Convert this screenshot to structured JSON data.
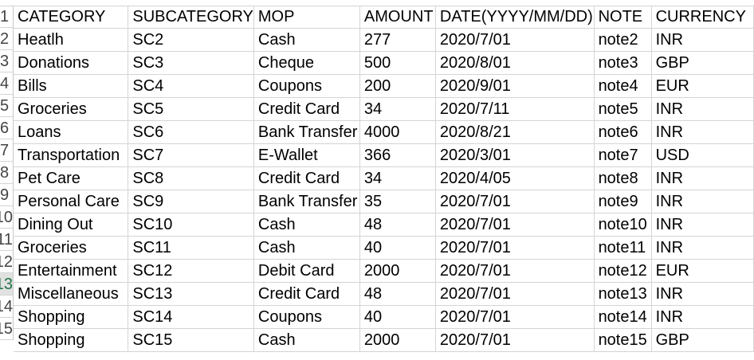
{
  "headers": [
    "CATEGORY",
    "SUBCATEGORY",
    "MOP",
    "AMOUNT",
    "DATE(YYYY/MM/DD)",
    "NOTE",
    "CURRENCY"
  ],
  "row_numbers": [
    "1",
    "2",
    "3",
    "4",
    "5",
    "6",
    "7",
    "8",
    "9",
    "10",
    "11",
    "12",
    "13",
    "14",
    "15"
  ],
  "rows": [
    [
      "Heatlh",
      "SC2",
      "Cash",
      "277",
      "2020/7/01",
      "note2",
      "INR"
    ],
    [
      "Donations",
      "SC3",
      "Cheque",
      "500",
      "2020/8/01",
      "note3",
      "GBP"
    ],
    [
      "Bills",
      "SC4",
      "Coupons",
      "200",
      "2020/9/01",
      "note4",
      "EUR"
    ],
    [
      "Groceries",
      "SC5",
      "Credit Card",
      "34",
      "2020/7/11",
      "note5",
      "INR"
    ],
    [
      "Loans",
      "SC6",
      "Bank Transfer",
      "4000",
      "2020/8/21",
      "note6",
      "INR"
    ],
    [
      "Transportation",
      "SC7",
      "E-Wallet",
      "366",
      "2020/3/01",
      "note7",
      "USD"
    ],
    [
      "Pet Care",
      "SC8",
      "Credit Card",
      "34",
      "2020/4/05",
      "note8",
      "INR"
    ],
    [
      "Personal Care",
      "SC9",
      "Bank Transfer",
      "35",
      "2020/7/01",
      "note9",
      "INR"
    ],
    [
      "Dining Out",
      "SC10",
      "Cash",
      "48",
      "2020/7/01",
      "note10",
      "INR"
    ],
    [
      "Groceries",
      "SC11",
      "Cash",
      "40",
      "2020/7/01",
      "note11",
      "INR"
    ],
    [
      "Entertainment",
      "SC12",
      "Debit Card",
      "2000",
      "2020/7/01",
      "note12",
      "EUR"
    ],
    [
      "Miscellaneous",
      "SC13",
      "Credit Card",
      "48",
      "2020/7/01",
      "note13",
      "INR"
    ],
    [
      "Shopping",
      "SC14",
      "Coupons",
      "40",
      "2020/7/01",
      "note14",
      "INR"
    ],
    [
      "Shopping",
      "SC15",
      "Cash",
      "2000",
      "2020/7/01",
      "note15",
      "GBP"
    ]
  ],
  "selected_row_number": "13"
}
